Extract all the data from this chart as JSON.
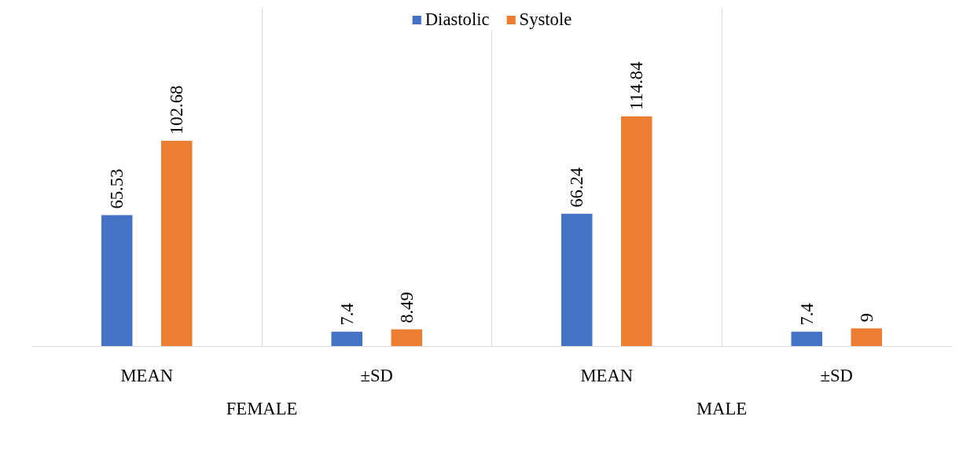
{
  "chart_data": {
    "type": "bar",
    "categories": [
      "MEAN",
      "±SD",
      "MEAN",
      "±SD"
    ],
    "series": [
      {
        "name": "Diastolic",
        "color": "#4472c4",
        "values": [
          65.53,
          7.4,
          66.24,
          7.4
        ]
      },
      {
        "name": "Systole",
        "color": "#ed7d31",
        "values": [
          102.68,
          8.49,
          114.84,
          9
        ]
      }
    ],
    "annotations": [
      "FEMALE",
      "MALE"
    ],
    "data_labels": true,
    "legend": "top",
    "grid": "x"
  }
}
